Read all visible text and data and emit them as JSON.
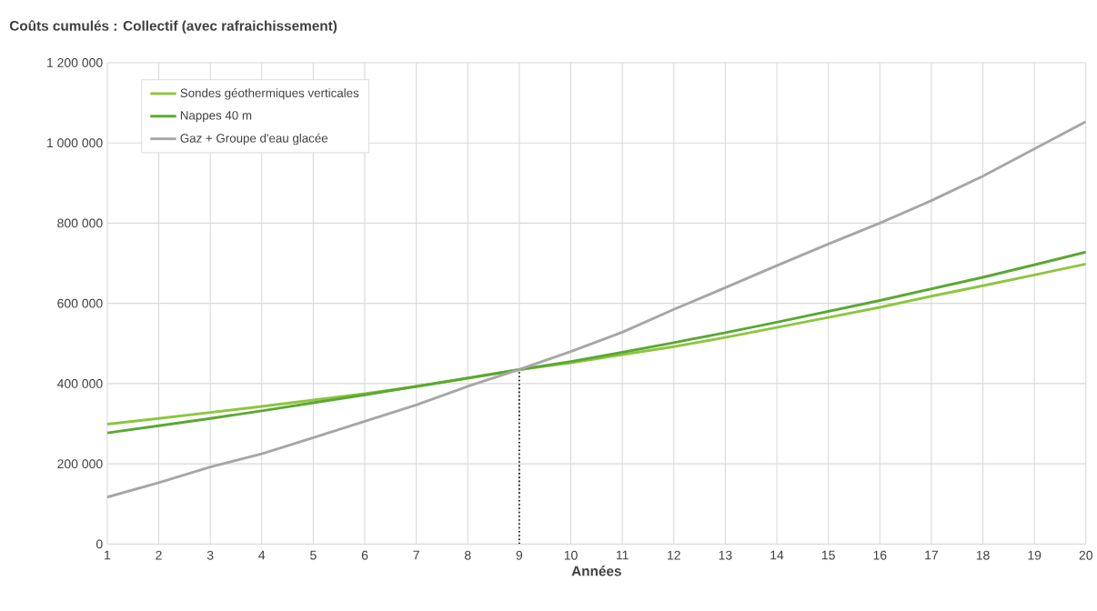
{
  "chart_data": {
    "type": "line",
    "title": "Coûts cumulés : Collectif (avec rafraichissement)",
    "xlabel": "Années",
    "x": [
      1,
      2,
      3,
      4,
      5,
      6,
      7,
      8,
      9,
      10,
      11,
      12,
      13,
      14,
      15,
      16,
      17,
      18,
      19,
      20
    ],
    "series": [
      {
        "name": "Sondes géothermiques verticales",
        "color": "#8cc63f",
        "values": [
          299000,
          313000,
          328000,
          343000,
          359000,
          375000,
          393000,
          413000,
          435000,
          452000,
          472000,
          492000,
          515000,
          540000,
          565000,
          590000,
          618000,
          644000,
          671000,
          698000
        ]
      },
      {
        "name": "Nappes 40 m",
        "color": "#5aa832",
        "values": [
          277000,
          295000,
          313000,
          332000,
          352000,
          372000,
          393000,
          414000,
          435000,
          455000,
          478000,
          502000,
          527000,
          553000,
          580000,
          607000,
          636000,
          665000,
          696000,
          728000
        ]
      },
      {
        "name": "Gaz + Groupe d'eau glacée",
        "color": "#a6a6a6",
        "values": [
          117000,
          153000,
          192000,
          225000,
          265000,
          306000,
          347000,
          393000,
          435000,
          480000,
          528000,
          585000,
          639000,
          694000,
          748000,
          800000,
          856000,
          917000,
          985000,
          1053000
        ]
      }
    ],
    "xlim": [
      1,
      20
    ],
    "xticks": [
      1,
      2,
      3,
      4,
      5,
      6,
      7,
      8,
      9,
      10,
      11,
      12,
      13,
      14,
      15,
      16,
      17,
      18,
      19,
      20
    ],
    "ylim": [
      0,
      1200000
    ],
    "yticks": [
      0,
      {
        "value": 200000,
        "label": "200 000"
      },
      {
        "value": 400000,
        "label": "400 000"
      },
      {
        "value": 600000,
        "label": "600 000"
      },
      {
        "value": 800000,
        "label": "800 000"
      },
      {
        "value": 1000000,
        "label": "1 000 000"
      },
      {
        "value": 1200000,
        "label": "1 200 000"
      }
    ],
    "ref_lines": [
      {
        "axis": "x",
        "value": 9,
        "color": "#000000",
        "line_style": "dotted"
      }
    ],
    "grid": true,
    "legend": "top left",
    "marker": "none",
    "line_style": "solid"
  }
}
